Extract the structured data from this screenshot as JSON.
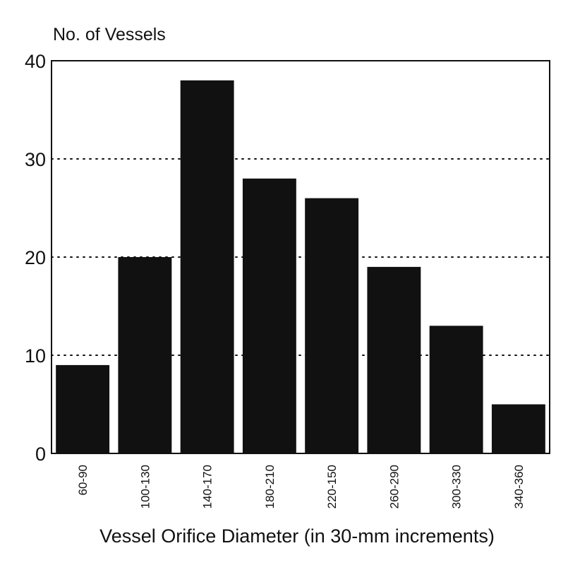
{
  "chart_data": {
    "type": "bar",
    "ylabel": "No. of Vessels",
    "xlabel": "Vessel Orifice Diameter (in 30-mm increments)",
    "categories": [
      "60-90",
      "100-130",
      "140-170",
      "180-210",
      "220-150",
      "260-290",
      "300-330",
      "340-360"
    ],
    "values": [
      9,
      20,
      38,
      28,
      26,
      19,
      13,
      5
    ],
    "ylim": [
      0,
      40
    ],
    "yticks": [
      "0",
      "10",
      "20",
      "30",
      "40"
    ],
    "grid": "horizontal dotted",
    "colors": {
      "bar": "#111111",
      "axis": "#111111",
      "grid": "#111111"
    }
  }
}
